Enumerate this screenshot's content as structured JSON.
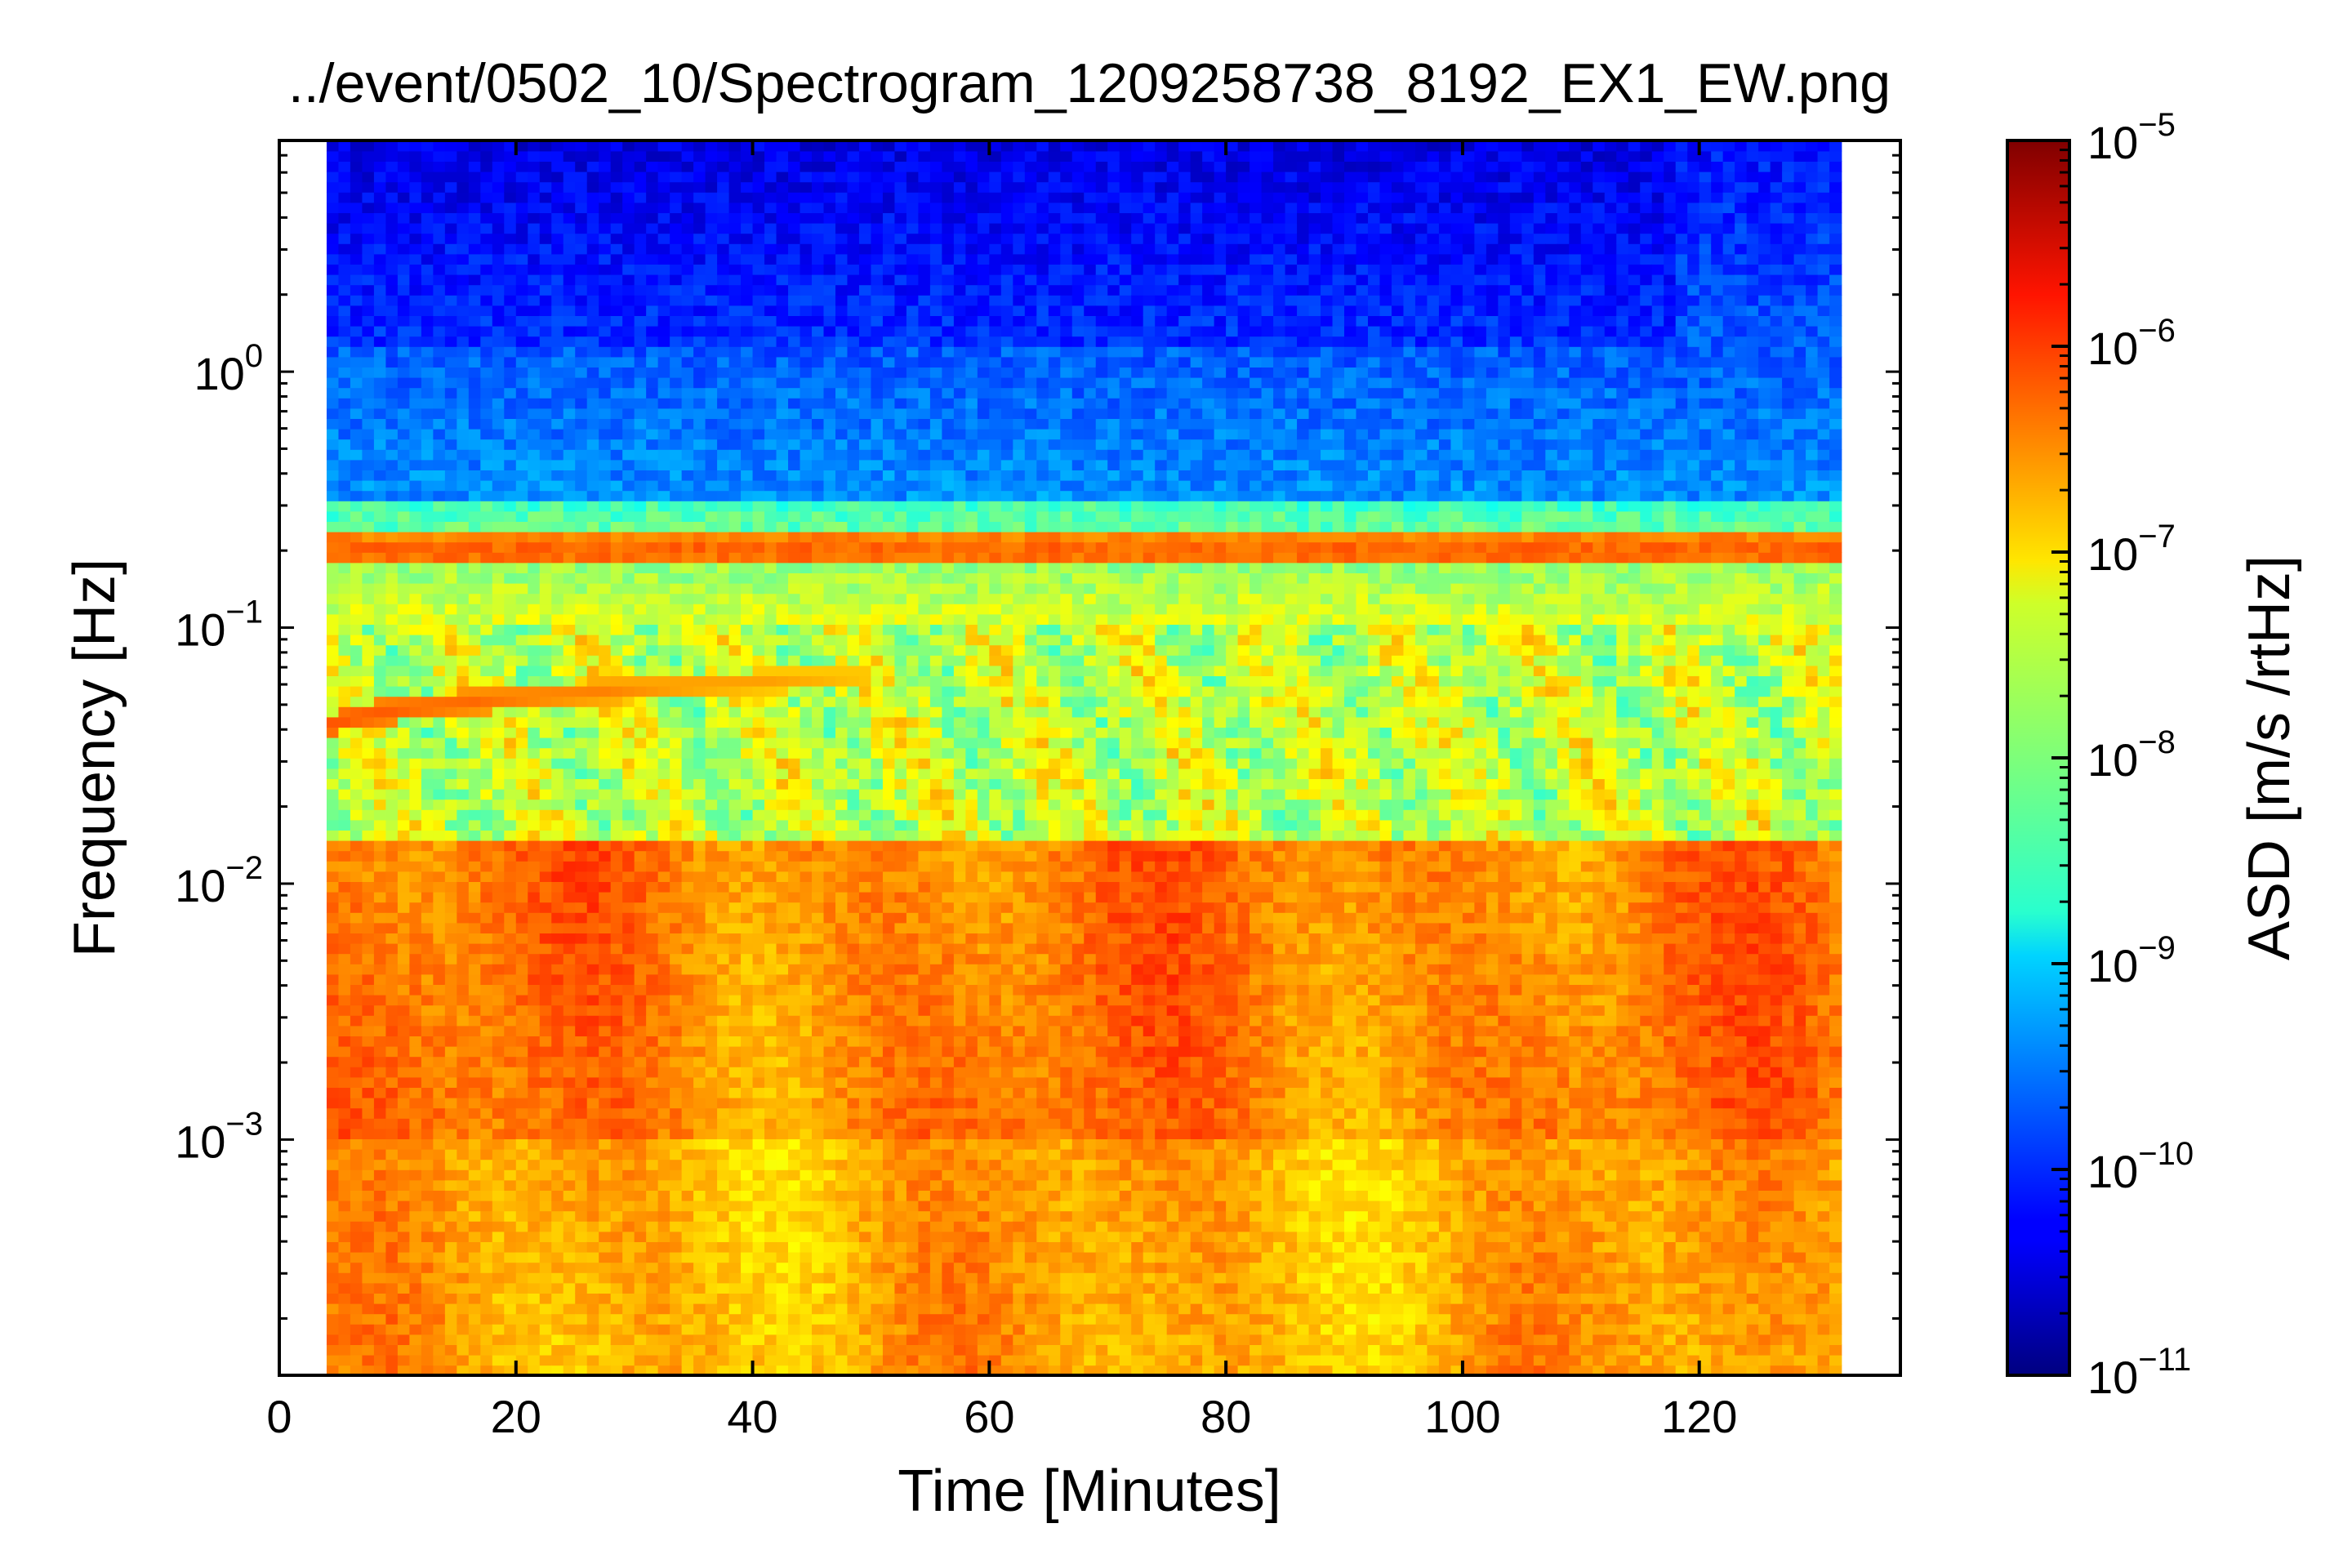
{
  "chart_data": {
    "type": "heatmap",
    "title": "../event/0502_10/Spectrogram_1209258738_8192_EX1_EW.png",
    "xlabel": "Time [Minutes]",
    "ylabel": "Frequency [Hz]",
    "xlim": [
      0,
      137
    ],
    "ylim": [
      0.00012,
      8.0
    ],
    "yscale": "log",
    "data_extent": {
      "t_start": 4,
      "t_end": 132,
      "t_step_change": 118
    },
    "x_ticks": [
      {
        "value": 0,
        "label": "0"
      },
      {
        "value": 20,
        "label": "20"
      },
      {
        "value": 40,
        "label": "40"
      },
      {
        "value": 60,
        "label": "60"
      },
      {
        "value": 80,
        "label": "80"
      },
      {
        "value": 100,
        "label": "100"
      },
      {
        "value": 120,
        "label": "120"
      }
    ],
    "y_ticks": [
      {
        "value": 0.001,
        "base": "10",
        "exp": "−3"
      },
      {
        "value": 0.01,
        "base": "10",
        "exp": "−2"
      },
      {
        "value": 0.1,
        "base": "10",
        "exp": "−1"
      },
      {
        "value": 1,
        "base": "10",
        "exp": "0"
      }
    ],
    "colorbar": {
      "label": "ASD [m/s /rtHz]",
      "scale": "log",
      "range": [
        1e-11,
        1e-05
      ],
      "colormap": "jet",
      "ticks": [
        {
          "value": 1e-11,
          "base": "10",
          "exp": "−11"
        },
        {
          "value": 1e-10,
          "base": "10",
          "exp": "−10"
        },
        {
          "value": 1e-09,
          "base": "10",
          "exp": "−9"
        },
        {
          "value": 1e-08,
          "base": "10",
          "exp": "−8"
        },
        {
          "value": 1e-07,
          "base": "10",
          "exp": "−7"
        },
        {
          "value": 1e-06,
          "base": "10",
          "exp": "−6"
        },
        {
          "value": 1e-05,
          "base": "10",
          "exp": "−5"
        }
      ]
    },
    "features": [
      {
        "kind": "band",
        "frequency_hz": 0.2,
        "log10_asd": -6.3
      },
      {
        "kind": "dispersed-arrival",
        "start_time": 4,
        "start_freq_hz": 0.04,
        "end_time": 50,
        "end_freq_hz": 0.065,
        "log10_asd": -6.2
      },
      {
        "kind": "high-amplitude-low-frequency",
        "below_hz": 0.015,
        "log10_asd": -6.5
      }
    ]
  }
}
